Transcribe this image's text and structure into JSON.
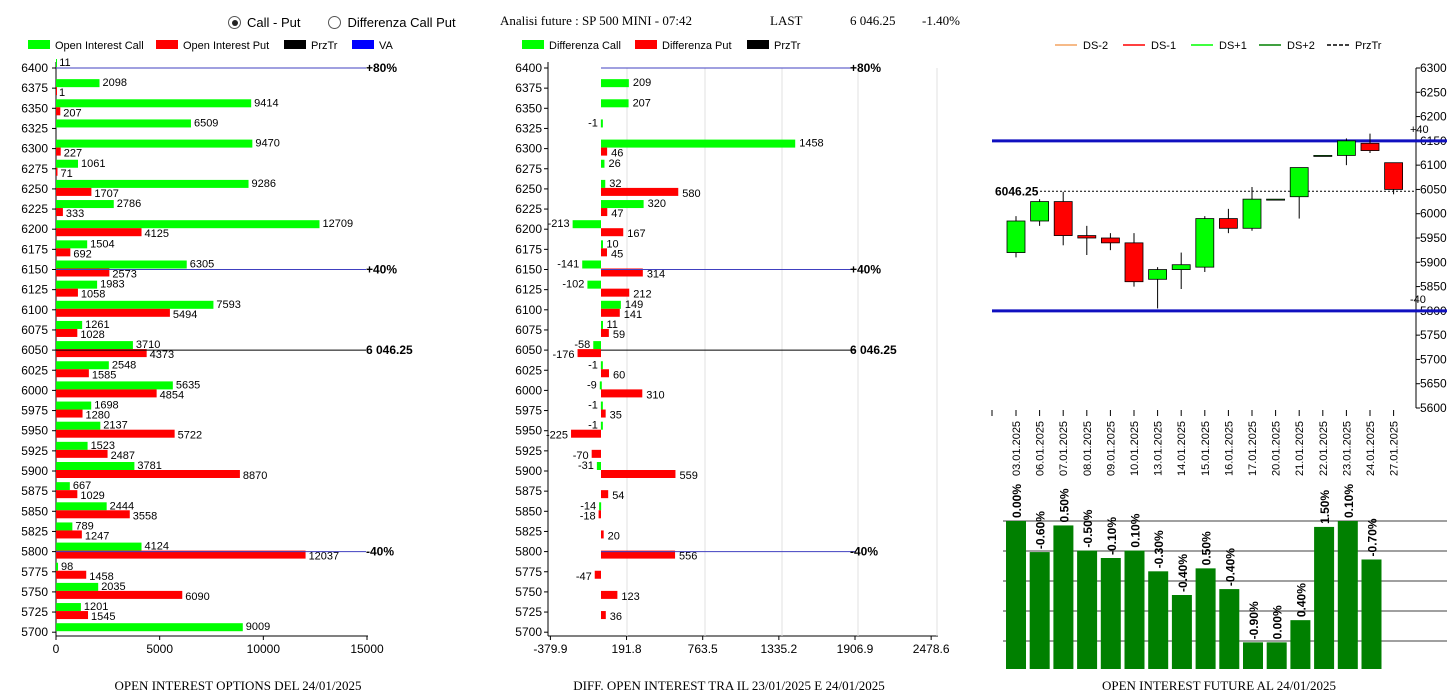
{
  "header": {
    "radio_options": [
      {
        "label": "Call - Put",
        "selected": true
      },
      {
        "label": "Differenza Call Put",
        "selected": false
      }
    ],
    "title": "Analisi future : SP 500 MINI - 07:42",
    "last_label": "LAST",
    "last_value": "6 046.25",
    "last_change": "-1.40%"
  },
  "colors": {
    "call": "#00ff00",
    "put": "#ff0000",
    "przTr": "#000000",
    "va": "#0000ff",
    "future_bar": "#008000"
  },
  "chart_data": [
    {
      "type": "bar",
      "title": "OPEN INTEREST OPTIONS DEL 24/01/2025",
      "legend": [
        "Open Interest Call",
        "Open Interest Put",
        "PrzTr",
        "VA"
      ],
      "categories": [
        "6400",
        "6375",
        "6350",
        "6325",
        "6300",
        "6275",
        "6250",
        "6225",
        "6200",
        "6175",
        "6150",
        "6125",
        "6100",
        "6075",
        "6050",
        "6025",
        "6000",
        "5975",
        "5950",
        "5925",
        "5900",
        "5875",
        "5850",
        "5825",
        "5800",
        "5775",
        "5750",
        "5725",
        "5700"
      ],
      "series": [
        {
          "name": "Open Interest Call",
          "values": [
            11,
            2098,
            9414,
            6509,
            9470,
            1061,
            9286,
            2786,
            12709,
            1504,
            6305,
            1983,
            7593,
            1261,
            3710,
            2548,
            5635,
            1698,
            2137,
            1523,
            3781,
            667,
            2444,
            789,
            4124,
            98,
            2035,
            1201,
            9009
          ]
        },
        {
          "name": "Open Interest Put",
          "values": [
            null,
            1,
            207,
            null,
            227,
            71,
            1707,
            333,
            4125,
            692,
            2573,
            1058,
            5494,
            1028,
            4373,
            1585,
            4854,
            1280,
            5722,
            2487,
            8870,
            1029,
            3558,
            1247,
            12037,
            1458,
            6090,
            1545,
            null
          ]
        }
      ],
      "xticks": [
        "0",
        "5000",
        "10000",
        "15000"
      ],
      "xlim": [
        0,
        15000
      ],
      "reference_lines": [
        {
          "label": "+80%",
          "at": "6400"
        },
        {
          "label": "+40%",
          "at": "6150"
        },
        {
          "label": "6 046.25",
          "at": "6050"
        },
        {
          "label": "-40%",
          "at": "5800"
        }
      ]
    },
    {
      "type": "bar",
      "title": "DIFF. OPEN INTEREST TRA IL 23/01/2025 E 24/01/2025",
      "legend": [
        "Differenza Call",
        "Differenza Put",
        "PrzTr"
      ],
      "categories": [
        "6400",
        "6375",
        "6350",
        "6325",
        "6300",
        "6275",
        "6250",
        "6225",
        "6200",
        "6175",
        "6150",
        "6125",
        "6100",
        "6075",
        "6050",
        "6025",
        "6000",
        "5975",
        "5950",
        "5925",
        "5900",
        "5875",
        "5850",
        "5825",
        "5800",
        "5775",
        "5750",
        "5725",
        "5700"
      ],
      "series": [
        {
          "name": "Differenza Call",
          "values": [
            null,
            209,
            207,
            -1,
            1458,
            26,
            32,
            320,
            -213,
            10,
            -141,
            -102,
            149,
            11,
            -58,
            -1,
            -9,
            -1,
            -1,
            null,
            -31,
            null,
            -14,
            null,
            null,
            null,
            null,
            null,
            null
          ]
        },
        {
          "name": "Differenza Put",
          "values": [
            null,
            null,
            null,
            null,
            46,
            null,
            580,
            47,
            167,
            45,
            314,
            212,
            141,
            59,
            -176,
            60,
            310,
            35,
            -225,
            -70,
            559,
            54,
            -18,
            20,
            556,
            -47,
            123,
            36,
            null
          ]
        }
      ],
      "xticks": [
        "-379.9",
        "191.8",
        "763.5",
        "1335.2",
        "1906.9",
        "2478.6"
      ],
      "xlim": [
        -379.9,
        2478.6
      ],
      "reference_lines": [
        {
          "label": "+80%",
          "at": "6400"
        },
        {
          "label": "+40%",
          "at": "6150"
        },
        {
          "label": "6 046.25",
          "at": "6050"
        },
        {
          "label": "-40%",
          "at": "5800"
        }
      ]
    },
    {
      "type": "candlestick",
      "legend": [
        "DS-2",
        "DS-1",
        "DS+1",
        "DS+2",
        "PrzTr"
      ],
      "legend_colors": [
        "#f4a460",
        "#ff0000",
        "#00ff00",
        "#008000",
        "#000000"
      ],
      "dates": [
        "03.01.2025",
        "06.01.2025",
        "07.01.2025",
        "08.01.2025",
        "09.01.2025",
        "10.01.2025",
        "13.01.2025",
        "14.01.2025",
        "15.01.2025",
        "16.01.2025",
        "17.01.2025",
        "20.01.2025",
        "21.01.2025",
        "22.01.2025",
        "23.01.2025",
        "24.01.2025",
        "27.01.2025"
      ],
      "ohlc": [
        [
          5920,
          5995,
          5910,
          5985
        ],
        [
          5985,
          6030,
          5975,
          6025
        ],
        [
          6025,
          6045,
          5935,
          5955
        ],
        [
          5955,
          5975,
          5915,
          5950
        ],
        [
          5950,
          5960,
          5925,
          5940
        ],
        [
          5940,
          5960,
          5850,
          5860
        ],
        [
          5865,
          5890,
          5805,
          5885
        ],
        [
          5885,
          5920,
          5845,
          5895
        ],
        [
          5890,
          5995,
          5880,
          5990
        ],
        [
          5990,
          6010,
          5960,
          5970
        ],
        [
          5970,
          6055,
          5965,
          6030
        ],
        [
          6030,
          6030,
          6030,
          6030
        ],
        [
          6035,
          6095,
          5990,
          6095
        ],
        [
          6120,
          6120,
          6120,
          6120
        ],
        [
          6120,
          6155,
          6100,
          6150
        ],
        [
          6145,
          6165,
          6125,
          6130
        ],
        [
          6105,
          6105,
          6040,
          6050
        ]
      ],
      "yticks": [
        "6300",
        "6250",
        "6200",
        "6150",
        "6100",
        "6050",
        "6000",
        "5950",
        "5900",
        "5850",
        "5800",
        "5750",
        "5700",
        "5650",
        "5600"
      ],
      "ylim": [
        5600,
        6300
      ],
      "levels": [
        {
          "label": "+40",
          "value": 6150
        },
        {
          "label": "-40",
          "value": 5800
        }
      ],
      "price_label": "6046.25",
      "price": 6046.25
    },
    {
      "type": "bar",
      "title": "OPEN INTEREST FUTURE AL 24/01/2025",
      "labels": [
        "0.00%",
        "-0.60%",
        "0.50%",
        "-0.50%",
        "-0.10%",
        "0.10%",
        "-0.30%",
        "-0.40%",
        "0.50%",
        "-0.40%",
        "-0.90%",
        "0.00%",
        "0.40%",
        "1.50%",
        "0.10%",
        "-0.70%"
      ],
      "values": [
        100,
        79,
        97,
        80,
        75,
        80,
        66,
        50,
        68,
        54,
        18,
        18,
        33,
        96,
        100,
        74
      ]
    }
  ]
}
